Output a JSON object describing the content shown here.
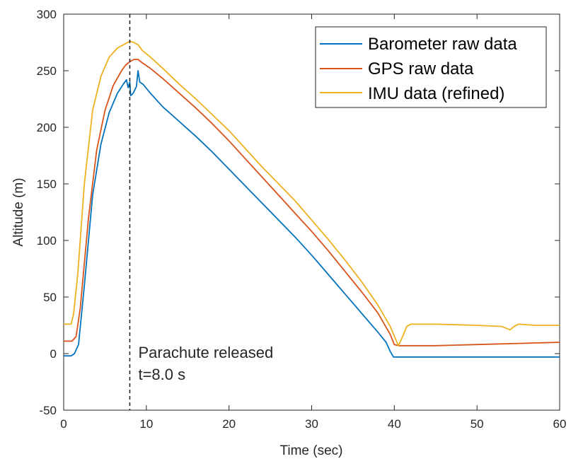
{
  "chart_data": {
    "type": "line",
    "xlabel": "Time (sec)",
    "ylabel": "Altitude (m)",
    "xlim": [
      0,
      60
    ],
    "ylim": [
      -50,
      300
    ],
    "x_ticks": [
      "0",
      "10",
      "20",
      "30",
      "40",
      "50",
      "60"
    ],
    "y_ticks": [
      "-50",
      "0",
      "50",
      "100",
      "150",
      "200",
      "250",
      "300"
    ],
    "grid": false,
    "legend_position": "top-right",
    "annotation": {
      "x": 8.0,
      "line1": "Parachute released",
      "line2": "t=8.0 s"
    },
    "series": [
      {
        "name": "Barometer raw data",
        "color": "#0072BD",
        "x": [
          0,
          0.9,
          1.3,
          1.8,
          2.5,
          3.5,
          4.5,
          5.5,
          6.5,
          7.2,
          7.6,
          7.8,
          8.0,
          8.1,
          8.4,
          8.8,
          9.0,
          9.2,
          9.6,
          10.5,
          12,
          14,
          16,
          18,
          20,
          22,
          24,
          26,
          28,
          30,
          32,
          34,
          36,
          38,
          39,
          39.5,
          39.9,
          42,
          45,
          48,
          51,
          54,
          57,
          60
        ],
        "y": [
          -2,
          -2,
          0,
          8,
          60,
          140,
          185,
          213,
          230,
          238,
          242,
          235,
          240,
          228,
          230,
          236,
          250,
          240,
          238,
          230,
          218,
          205,
          192,
          178,
          163,
          148,
          133,
          118,
          103,
          87,
          70,
          53,
          36,
          19,
          10,
          2,
          -3,
          -3,
          -3,
          -3,
          -3,
          -3,
          -3,
          -3
        ]
      },
      {
        "name": "GPS raw data",
        "color": "#D95319",
        "x": [
          0,
          1.0,
          1.5,
          2.0,
          3.0,
          4.0,
          5.0,
          6.0,
          7.0,
          7.5,
          8.0,
          8.5,
          9.0,
          9.5,
          10.5,
          12,
          14,
          16,
          18,
          20,
          22,
          24,
          26,
          28,
          30,
          32,
          34,
          36,
          38,
          39.5,
          40.0,
          40.5,
          45,
          50,
          55,
          60
        ],
        "y": [
          11,
          11,
          15,
          40,
          120,
          180,
          215,
          237,
          250,
          255,
          258,
          260,
          260,
          257,
          252,
          243,
          230,
          217,
          203,
          188,
          172,
          156,
          140,
          124,
          108,
          91,
          73,
          55,
          36,
          17,
          8,
          7,
          7,
          8,
          9,
          10
        ]
      },
      {
        "name": "IMU data (refined)",
        "color": "#EDB120",
        "x": [
          0,
          0.9,
          1.2,
          1.7,
          2.5,
          3.5,
          4.5,
          5.5,
          6.5,
          7.5,
          8.0,
          8.5,
          9.0,
          9.5,
          10.5,
          12,
          14,
          16,
          18,
          20,
          22,
          24,
          26,
          28,
          30,
          32,
          34,
          36,
          38,
          39.5,
          40.5,
          41.0,
          41.5,
          42.0,
          45,
          50,
          53,
          54.0,
          54.5,
          55.0,
          57,
          60
        ],
        "y": [
          26,
          26,
          35,
          70,
          150,
          215,
          245,
          262,
          270,
          274,
          276,
          275,
          273,
          268,
          262,
          252,
          238,
          225,
          211,
          197,
          181,
          165,
          150,
          135,
          118,
          101,
          83,
          64,
          43,
          24,
          7,
          15,
          24,
          26,
          26,
          25,
          24,
          21,
          24,
          26,
          25,
          25
        ]
      }
    ]
  }
}
